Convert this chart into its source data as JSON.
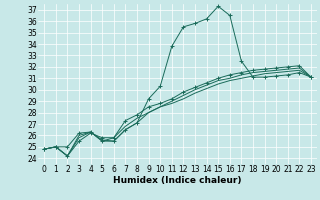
{
  "title": "",
  "xlabel": "Humidex (Indice chaleur)",
  "ylabel": "",
  "bg_color": "#c8e8e8",
  "line_color": "#1a6b5a",
  "xlim": [
    -0.5,
    23.5
  ],
  "ylim": [
    23.5,
    37.5
  ],
  "yticks": [
    24,
    25,
    26,
    27,
    28,
    29,
    30,
    31,
    32,
    33,
    34,
    35,
    36,
    37
  ],
  "xticks": [
    0,
    1,
    2,
    3,
    4,
    5,
    6,
    7,
    8,
    9,
    10,
    11,
    12,
    13,
    14,
    15,
    16,
    17,
    18,
    19,
    20,
    21,
    22,
    23
  ],
  "lines": [
    {
      "x": [
        0,
        1,
        2,
        3,
        4,
        5,
        6,
        7,
        8,
        9,
        10,
        11,
        12,
        13,
        14,
        15,
        16,
        17,
        18,
        19,
        20,
        21,
        22,
        23
      ],
      "y": [
        24.8,
        25.0,
        25.0,
        26.2,
        26.3,
        25.5,
        25.5,
        26.5,
        27.1,
        29.2,
        30.3,
        33.8,
        35.5,
        35.8,
        36.2,
        37.3,
        36.5,
        32.5,
        31.1,
        31.1,
        31.2,
        31.3,
        31.5,
        31.1
      ],
      "marker": "+"
    },
    {
      "x": [
        0,
        1,
        2,
        3,
        4,
        5,
        6,
        7,
        8,
        9,
        10,
        11,
        12,
        13,
        14,
        15,
        16,
        17,
        18,
        19,
        20,
        21,
        22,
        23
      ],
      "y": [
        24.8,
        25.0,
        24.2,
        25.5,
        26.2,
        25.8,
        25.8,
        27.3,
        27.8,
        28.5,
        28.8,
        29.2,
        29.8,
        30.2,
        30.6,
        31.0,
        31.3,
        31.5,
        31.7,
        31.8,
        31.9,
        32.0,
        32.1,
        31.1
      ],
      "marker": "+"
    },
    {
      "x": [
        0,
        1,
        2,
        3,
        4,
        5,
        6,
        7,
        8,
        9,
        10,
        11,
        12,
        13,
        14,
        15,
        16,
        17,
        18,
        19,
        20,
        21,
        22,
        23
      ],
      "y": [
        24.8,
        25.0,
        24.2,
        26.0,
        26.3,
        25.6,
        25.5,
        26.5,
        27.1,
        28.0,
        28.5,
        28.8,
        29.2,
        29.7,
        30.1,
        30.5,
        30.8,
        31.0,
        31.2,
        31.4,
        31.5,
        31.6,
        31.7,
        31.1
      ],
      "marker": null
    },
    {
      "x": [
        0,
        1,
        2,
        3,
        4,
        5,
        6,
        7,
        8,
        9,
        10,
        11,
        12,
        13,
        14,
        15,
        16,
        17,
        18,
        19,
        20,
        21,
        22,
        23
      ],
      "y": [
        24.8,
        25.0,
        24.2,
        25.8,
        26.3,
        25.5,
        25.8,
        26.8,
        27.5,
        28.0,
        28.5,
        29.0,
        29.5,
        30.0,
        30.4,
        30.8,
        31.0,
        31.3,
        31.5,
        31.6,
        31.7,
        31.8,
        31.9,
        31.1
      ],
      "marker": null
    }
  ],
  "tick_fontsize": 5.5,
  "xlabel_fontsize": 6.5
}
